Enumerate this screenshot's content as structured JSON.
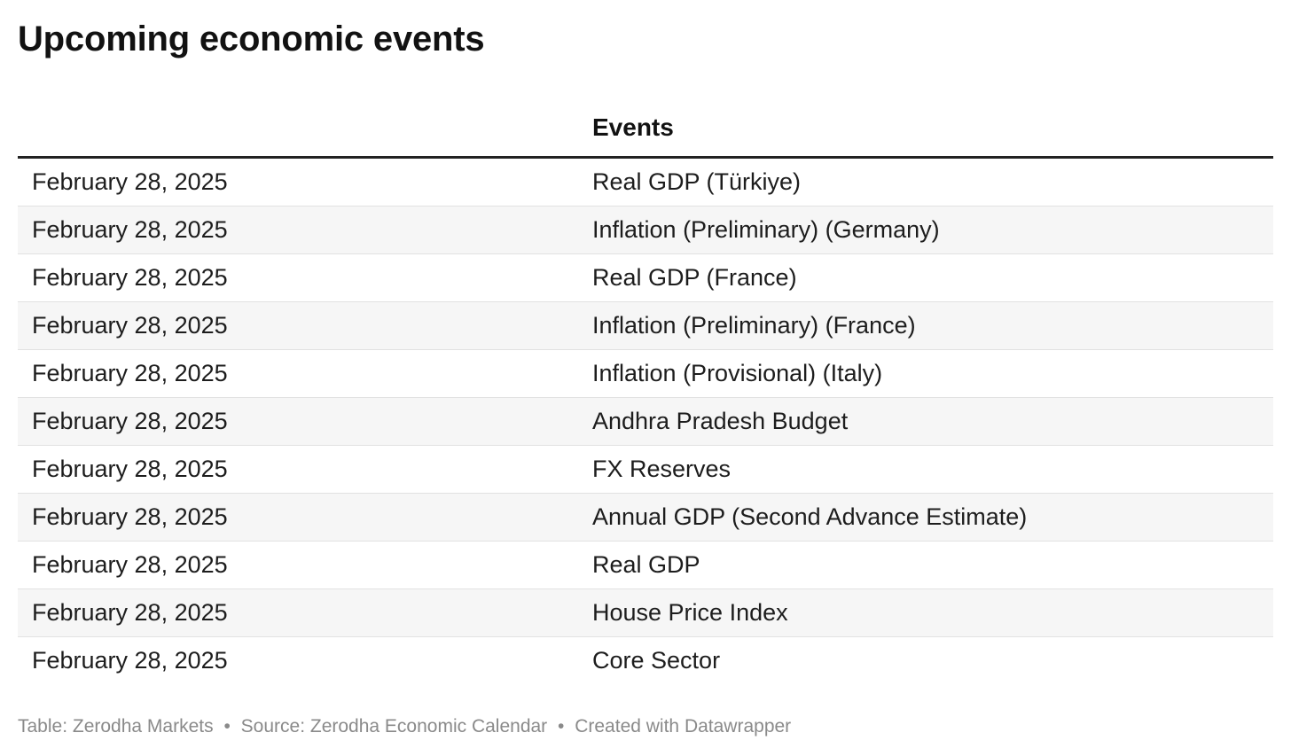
{
  "title": "Upcoming economic events",
  "table": {
    "columns": [
      "",
      "Events"
    ],
    "rows": [
      {
        "date": "February 28, 2025",
        "event": "Real GDP (Türkiye)"
      },
      {
        "date": "February 28, 2025",
        "event": "Inflation (Preliminary) (Germany)"
      },
      {
        "date": "February 28, 2025",
        "event": "Real GDP (France)"
      },
      {
        "date": "February 28, 2025",
        "event": "Inflation (Preliminary) (France)"
      },
      {
        "date": "February 28, 2025",
        "event": "Inflation (Provisional) (Italy)"
      },
      {
        "date": "February 28, 2025",
        "event": "Andhra Pradesh Budget"
      },
      {
        "date": "February 28, 2025",
        "event": "FX Reserves"
      },
      {
        "date": "February 28, 2025",
        "event": "Annual GDP (Second Advance Estimate)"
      },
      {
        "date": "February 28, 2025",
        "event": "Real GDP"
      },
      {
        "date": "February 28, 2025",
        "event": "House Price Index"
      },
      {
        "date": "February 28, 2025",
        "event": "Core Sector"
      }
    ]
  },
  "footer": {
    "table_credit": "Table: Zerodha Markets",
    "source": "Source: Zerodha Economic Calendar",
    "created_with": "Created with Datawrapper",
    "separator": "•"
  }
}
